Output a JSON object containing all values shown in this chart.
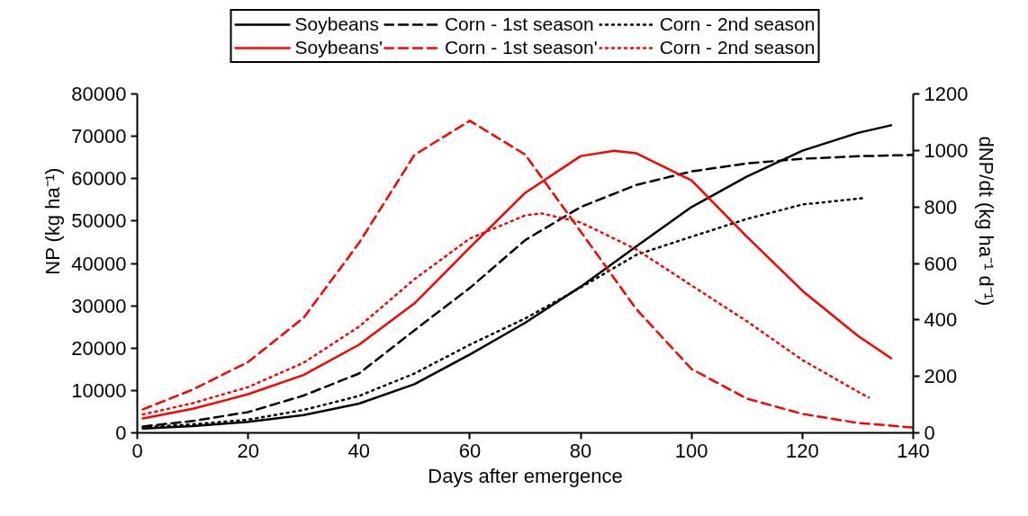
{
  "chart_data": {
    "type": "line",
    "xlabel": "Days after emergence",
    "ylabel": "NP (kg ha⁻¹)",
    "y2label": "dNP/dt (kg ha⁻¹ d⁻¹)",
    "xlim": [
      0,
      140
    ],
    "xticks": [
      0,
      20,
      40,
      60,
      80,
      100,
      120,
      140
    ],
    "ylim": [
      0,
      80000
    ],
    "yticks": [
      0,
      10000,
      20000,
      30000,
      40000,
      50000,
      60000,
      70000,
      80000
    ],
    "y2lim": [
      0,
      1200
    ],
    "y2ticks": [
      0,
      200,
      400,
      600,
      800,
      1000,
      1200
    ],
    "grid": false,
    "legend": "top",
    "marker": "none",
    "series": [
      {
        "name": "Soybeans",
        "color": "#000000",
        "line_style": "solid",
        "x": [
          1,
          10,
          20,
          30,
          40,
          50,
          60,
          70,
          80,
          90,
          100,
          110,
          120,
          130,
          136
        ],
        "values": [
          1000,
          1600,
          2600,
          4200,
          6900,
          11500,
          18500,
          26000,
          34500,
          44000,
          53300,
          60500,
          66600,
          70800,
          72600
        ]
      },
      {
        "name": "Corn - 1st season",
        "color": "#000000",
        "line_style": "dashed",
        "x": [
          1,
          10,
          20,
          30,
          40,
          50,
          60,
          70,
          80,
          90,
          100,
          110,
          120,
          130,
          140
        ],
        "values": [
          1500,
          2800,
          4900,
          8800,
          14000,
          24200,
          34200,
          45500,
          53300,
          58500,
          61700,
          63600,
          64700,
          65300,
          65600
        ]
      },
      {
        "name": "Corn - 2nd season",
        "color": "#000000",
        "line_style": "dotted",
        "x": [
          1,
          10,
          20,
          30,
          40,
          50,
          60,
          70,
          80,
          90,
          100,
          110,
          120,
          131
        ],
        "values": [
          1300,
          2000,
          3100,
          5400,
          8700,
          14000,
          20800,
          27000,
          34300,
          42000,
          46300,
          50500,
          53900,
          55400
        ]
      },
      {
        "name": "Soybeans'",
        "color": "#ff0000",
        "line_style": "solid",
        "axis": "y2",
        "x": [
          1,
          10,
          20,
          30,
          40,
          50,
          60,
          70,
          80,
          86,
          90,
          100,
          110,
          120,
          130,
          136
        ],
        "values": [
          51,
          85,
          137,
          205,
          312,
          458,
          656,
          850,
          980,
          999,
          990,
          894,
          694,
          503,
          344,
          264
        ]
      },
      {
        "name": "Corn - 1st season'",
        "color": "#ff0000",
        "line_style": "dashed",
        "axis": "y2",
        "x": [
          1,
          10,
          20,
          30,
          40,
          50,
          60,
          70,
          80,
          90,
          100,
          110,
          120,
          130,
          140
        ],
        "values": [
          83,
          153,
          251,
          407,
          672,
          984,
          1105,
          985,
          713,
          439,
          226,
          121,
          67,
          35,
          19
        ]
      },
      {
        "name": "Corn - 2nd season",
        "color": "#ff0000",
        "line_style": "dotted",
        "axis": "y2",
        "x": [
          1,
          10,
          20,
          30,
          40,
          50,
          60,
          70,
          73,
          80,
          90,
          100,
          110,
          120,
          130,
          132
        ],
        "values": [
          65,
          105,
          162,
          248,
          376,
          544,
          688,
          770,
          777,
          745,
          650,
          522,
          395,
          258,
          146,
          125
        ]
      }
    ]
  }
}
